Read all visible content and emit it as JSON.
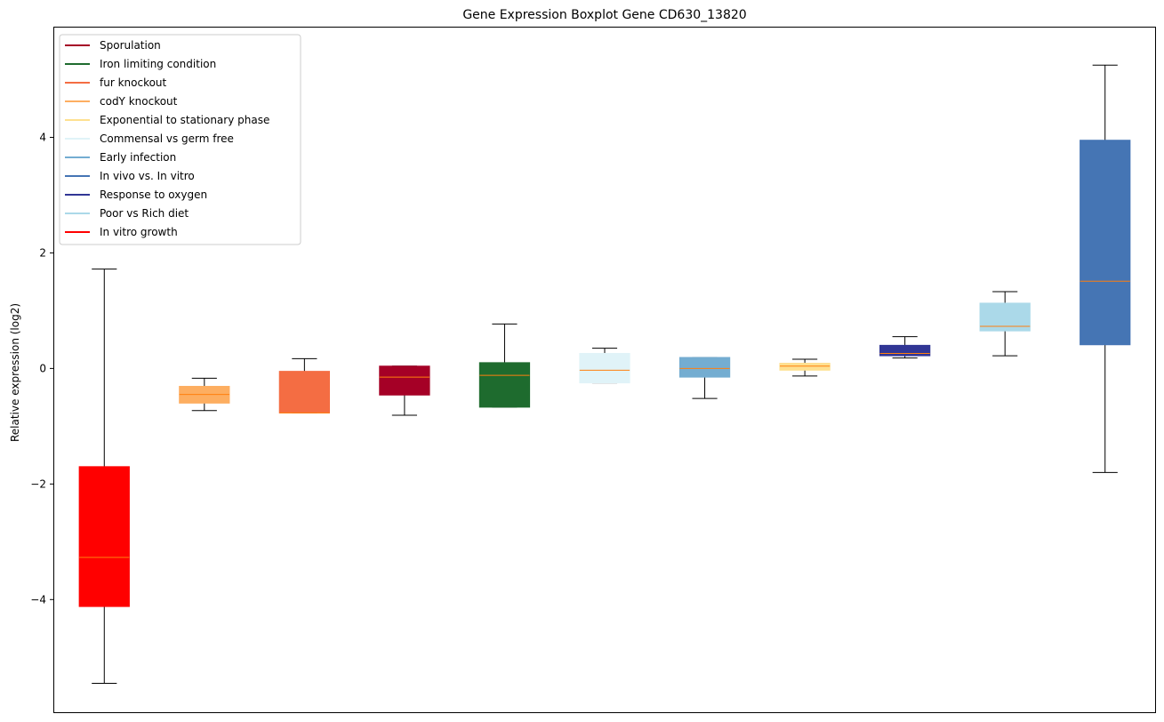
{
  "chart_data": {
    "type": "box",
    "title": "Gene Expression Boxplot Gene CD630_13820",
    "xlabel": "",
    "ylabel": "Relative expression (log2)",
    "ylim": [
      -5.95,
      5.9
    ],
    "yticks": [
      -4,
      -2,
      0,
      2,
      4
    ],
    "ytick_labels": [
      "−4",
      "−2",
      "0",
      "2",
      "4"
    ],
    "grid": false,
    "legend_position": "upper-left",
    "median_color": "#ff7f0e",
    "legend": [
      {
        "name": "Sporulation",
        "color": "#a50026"
      },
      {
        "name": "Iron limiting condition",
        "color": "#1e6b2e"
      },
      {
        "name": "fur knockout",
        "color": "#f46d43"
      },
      {
        "name": "codY knockout",
        "color": "#fdae61"
      },
      {
        "name": "Exponential to stationary phase",
        "color": "#fee090"
      },
      {
        "name": "Commensal vs germ free",
        "color": "#e0f3f8"
      },
      {
        "name": "Early infection",
        "color": "#74add1"
      },
      {
        "name": "In vivo vs. In vitro",
        "color": "#4575b4"
      },
      {
        "name": "Response to oxygen",
        "color": "#313695"
      },
      {
        "name": "Poor vs Rich diet",
        "color": "#abd9e9"
      },
      {
        "name": "In vitro growth",
        "color": "#ff0000"
      }
    ],
    "boxes": [
      {
        "group": "In vitro growth",
        "color": "#ff0000",
        "min": -5.45,
        "q1": -4.12,
        "median": -3.27,
        "q3": -1.7,
        "max": 1.72
      },
      {
        "group": "codY knockout",
        "color": "#fdae61",
        "min": -0.73,
        "q1": -0.6,
        "median": -0.45,
        "q3": -0.31,
        "max": -0.17
      },
      {
        "group": "fur knockout",
        "color": "#f46d43",
        "min": -0.77,
        "q1": -0.77,
        "median": -0.77,
        "q3": -0.05,
        "max": 0.17
      },
      {
        "group": "Sporulation",
        "color": "#a50026",
        "min": -0.81,
        "q1": -0.46,
        "median": -0.15,
        "q3": 0.04,
        "max": 0.04
      },
      {
        "group": "Iron limiting condition",
        "color": "#1e6b2e",
        "min": -0.67,
        "q1": -0.67,
        "median": -0.12,
        "q3": 0.1,
        "max": 0.77
      },
      {
        "group": "Commensal vs germ free",
        "color": "#e0f3f8",
        "min": -0.25,
        "q1": -0.25,
        "median": -0.03,
        "q3": 0.26,
        "max": 0.35
      },
      {
        "group": "Early infection",
        "color": "#74add1",
        "min": -0.52,
        "q1": -0.15,
        "median": 0.0,
        "q3": 0.19,
        "max": 0.19
      },
      {
        "group": "Exponential to stationary phase",
        "color": "#fee090",
        "min": -0.13,
        "q1": -0.03,
        "median": 0.04,
        "q3": 0.09,
        "max": 0.16
      },
      {
        "group": "Response to oxygen",
        "color": "#313695",
        "min": 0.18,
        "q1": 0.22,
        "median": 0.26,
        "q3": 0.4,
        "max": 0.55
      },
      {
        "group": "Poor vs Rich diet",
        "color": "#abd9e9",
        "min": 0.22,
        "q1": 0.65,
        "median": 0.73,
        "q3": 1.13,
        "max": 1.33
      },
      {
        "group": "In vivo vs. In vitro",
        "color": "#4575b4",
        "min": -1.8,
        "q1": 0.41,
        "median": 1.51,
        "q3": 3.95,
        "max": 5.25
      }
    ]
  }
}
